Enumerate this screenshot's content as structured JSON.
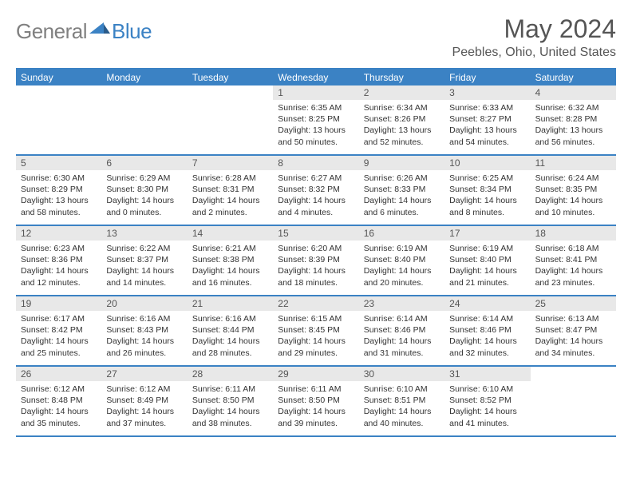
{
  "logo": {
    "text_general": "General",
    "text_blue": "Blue",
    "shape_color": "#3b82c4"
  },
  "title": {
    "month": "May 2024",
    "location": "Peebles, Ohio, United States"
  },
  "weekday_header": {
    "background": "#3b82c4",
    "text_color": "#ffffff",
    "font_size": 12,
    "days": [
      "Sunday",
      "Monday",
      "Tuesday",
      "Wednesday",
      "Thursday",
      "Friday",
      "Saturday"
    ]
  },
  "day_number_style": {
    "background": "#e8e8e8",
    "text_color": "#555555"
  },
  "week_border_color": "#3b82c4",
  "weeks": [
    [
      {
        "num": "",
        "text": ""
      },
      {
        "num": "",
        "text": ""
      },
      {
        "num": "",
        "text": ""
      },
      {
        "num": "1",
        "sunrise": "Sunrise: 6:35 AM",
        "sunset": "Sunset: 8:25 PM",
        "daylight1": "Daylight: 13 hours",
        "daylight2": "and 50 minutes."
      },
      {
        "num": "2",
        "sunrise": "Sunrise: 6:34 AM",
        "sunset": "Sunset: 8:26 PM",
        "daylight1": "Daylight: 13 hours",
        "daylight2": "and 52 minutes."
      },
      {
        "num": "3",
        "sunrise": "Sunrise: 6:33 AM",
        "sunset": "Sunset: 8:27 PM",
        "daylight1": "Daylight: 13 hours",
        "daylight2": "and 54 minutes."
      },
      {
        "num": "4",
        "sunrise": "Sunrise: 6:32 AM",
        "sunset": "Sunset: 8:28 PM",
        "daylight1": "Daylight: 13 hours",
        "daylight2": "and 56 minutes."
      }
    ],
    [
      {
        "num": "5",
        "sunrise": "Sunrise: 6:30 AM",
        "sunset": "Sunset: 8:29 PM",
        "daylight1": "Daylight: 13 hours",
        "daylight2": "and 58 minutes."
      },
      {
        "num": "6",
        "sunrise": "Sunrise: 6:29 AM",
        "sunset": "Sunset: 8:30 PM",
        "daylight1": "Daylight: 14 hours",
        "daylight2": "and 0 minutes."
      },
      {
        "num": "7",
        "sunrise": "Sunrise: 6:28 AM",
        "sunset": "Sunset: 8:31 PM",
        "daylight1": "Daylight: 14 hours",
        "daylight2": "and 2 minutes."
      },
      {
        "num": "8",
        "sunrise": "Sunrise: 6:27 AM",
        "sunset": "Sunset: 8:32 PM",
        "daylight1": "Daylight: 14 hours",
        "daylight2": "and 4 minutes."
      },
      {
        "num": "9",
        "sunrise": "Sunrise: 6:26 AM",
        "sunset": "Sunset: 8:33 PM",
        "daylight1": "Daylight: 14 hours",
        "daylight2": "and 6 minutes."
      },
      {
        "num": "10",
        "sunrise": "Sunrise: 6:25 AM",
        "sunset": "Sunset: 8:34 PM",
        "daylight1": "Daylight: 14 hours",
        "daylight2": "and 8 minutes."
      },
      {
        "num": "11",
        "sunrise": "Sunrise: 6:24 AM",
        "sunset": "Sunset: 8:35 PM",
        "daylight1": "Daylight: 14 hours",
        "daylight2": "and 10 minutes."
      }
    ],
    [
      {
        "num": "12",
        "sunrise": "Sunrise: 6:23 AM",
        "sunset": "Sunset: 8:36 PM",
        "daylight1": "Daylight: 14 hours",
        "daylight2": "and 12 minutes."
      },
      {
        "num": "13",
        "sunrise": "Sunrise: 6:22 AM",
        "sunset": "Sunset: 8:37 PM",
        "daylight1": "Daylight: 14 hours",
        "daylight2": "and 14 minutes."
      },
      {
        "num": "14",
        "sunrise": "Sunrise: 6:21 AM",
        "sunset": "Sunset: 8:38 PM",
        "daylight1": "Daylight: 14 hours",
        "daylight2": "and 16 minutes."
      },
      {
        "num": "15",
        "sunrise": "Sunrise: 6:20 AM",
        "sunset": "Sunset: 8:39 PM",
        "daylight1": "Daylight: 14 hours",
        "daylight2": "and 18 minutes."
      },
      {
        "num": "16",
        "sunrise": "Sunrise: 6:19 AM",
        "sunset": "Sunset: 8:40 PM",
        "daylight1": "Daylight: 14 hours",
        "daylight2": "and 20 minutes."
      },
      {
        "num": "17",
        "sunrise": "Sunrise: 6:19 AM",
        "sunset": "Sunset: 8:40 PM",
        "daylight1": "Daylight: 14 hours",
        "daylight2": "and 21 minutes."
      },
      {
        "num": "18",
        "sunrise": "Sunrise: 6:18 AM",
        "sunset": "Sunset: 8:41 PM",
        "daylight1": "Daylight: 14 hours",
        "daylight2": "and 23 minutes."
      }
    ],
    [
      {
        "num": "19",
        "sunrise": "Sunrise: 6:17 AM",
        "sunset": "Sunset: 8:42 PM",
        "daylight1": "Daylight: 14 hours",
        "daylight2": "and 25 minutes."
      },
      {
        "num": "20",
        "sunrise": "Sunrise: 6:16 AM",
        "sunset": "Sunset: 8:43 PM",
        "daylight1": "Daylight: 14 hours",
        "daylight2": "and 26 minutes."
      },
      {
        "num": "21",
        "sunrise": "Sunrise: 6:16 AM",
        "sunset": "Sunset: 8:44 PM",
        "daylight1": "Daylight: 14 hours",
        "daylight2": "and 28 minutes."
      },
      {
        "num": "22",
        "sunrise": "Sunrise: 6:15 AM",
        "sunset": "Sunset: 8:45 PM",
        "daylight1": "Daylight: 14 hours",
        "daylight2": "and 29 minutes."
      },
      {
        "num": "23",
        "sunrise": "Sunrise: 6:14 AM",
        "sunset": "Sunset: 8:46 PM",
        "daylight1": "Daylight: 14 hours",
        "daylight2": "and 31 minutes."
      },
      {
        "num": "24",
        "sunrise": "Sunrise: 6:14 AM",
        "sunset": "Sunset: 8:46 PM",
        "daylight1": "Daylight: 14 hours",
        "daylight2": "and 32 minutes."
      },
      {
        "num": "25",
        "sunrise": "Sunrise: 6:13 AM",
        "sunset": "Sunset: 8:47 PM",
        "daylight1": "Daylight: 14 hours",
        "daylight2": "and 34 minutes."
      }
    ],
    [
      {
        "num": "26",
        "sunrise": "Sunrise: 6:12 AM",
        "sunset": "Sunset: 8:48 PM",
        "daylight1": "Daylight: 14 hours",
        "daylight2": "and 35 minutes."
      },
      {
        "num": "27",
        "sunrise": "Sunrise: 6:12 AM",
        "sunset": "Sunset: 8:49 PM",
        "daylight1": "Daylight: 14 hours",
        "daylight2": "and 37 minutes."
      },
      {
        "num": "28",
        "sunrise": "Sunrise: 6:11 AM",
        "sunset": "Sunset: 8:50 PM",
        "daylight1": "Daylight: 14 hours",
        "daylight2": "and 38 minutes."
      },
      {
        "num": "29",
        "sunrise": "Sunrise: 6:11 AM",
        "sunset": "Sunset: 8:50 PM",
        "daylight1": "Daylight: 14 hours",
        "daylight2": "and 39 minutes."
      },
      {
        "num": "30",
        "sunrise": "Sunrise: 6:10 AM",
        "sunset": "Sunset: 8:51 PM",
        "daylight1": "Daylight: 14 hours",
        "daylight2": "and 40 minutes."
      },
      {
        "num": "31",
        "sunrise": "Sunrise: 6:10 AM",
        "sunset": "Sunset: 8:52 PM",
        "daylight1": "Daylight: 14 hours",
        "daylight2": "and 41 minutes."
      },
      {
        "num": "",
        "text": ""
      }
    ]
  ]
}
